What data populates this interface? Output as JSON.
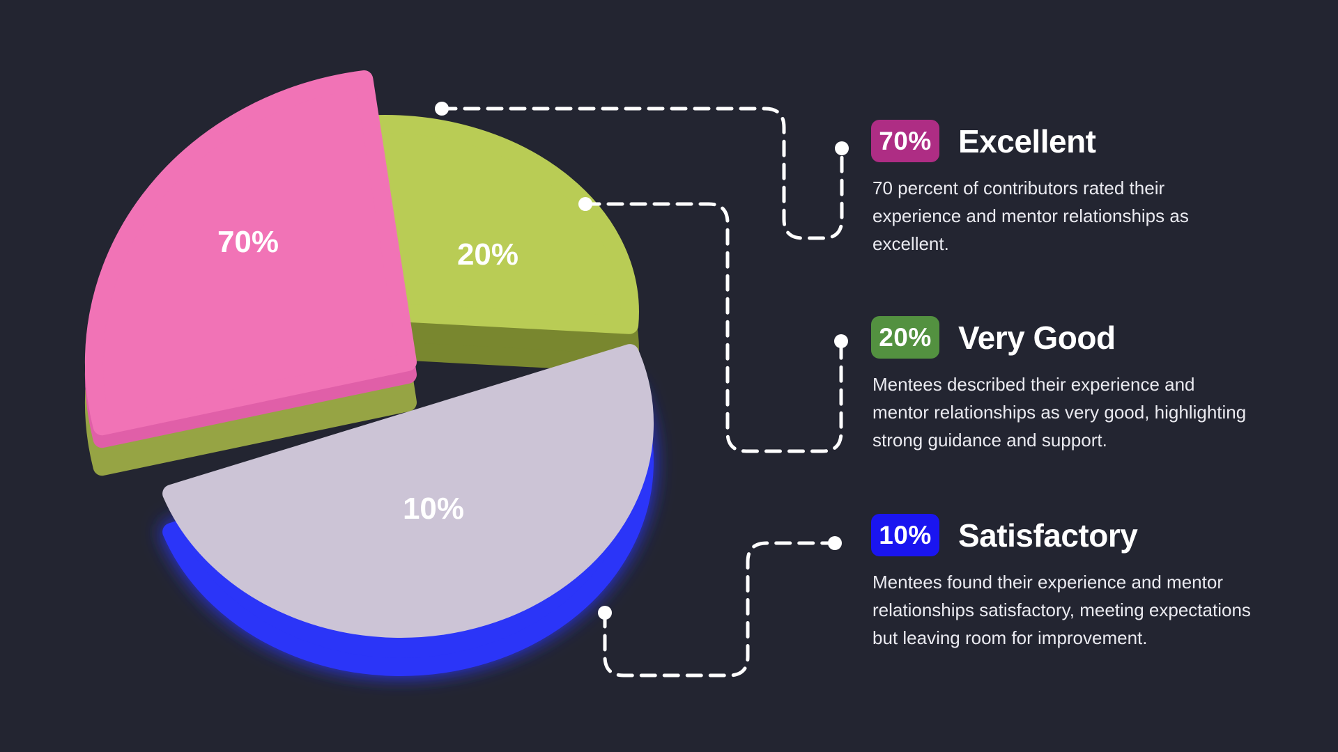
{
  "background_color": "#232531",
  "connector_color": "#FFFFFF",
  "chart_data": {
    "type": "pie",
    "style": "3d-exploded",
    "unit": "percent",
    "slices": [
      {
        "label": "Excellent",
        "value": 70,
        "display": "70%",
        "color_top": "#F173B6",
        "color_rim": "#E05FA8",
        "color_side": "#96A444"
      },
      {
        "label": "Very Good",
        "value": 20,
        "display": "20%",
        "color_top": "#B9CC55",
        "color_side": "#79872F"
      },
      {
        "label": "Satisfactory",
        "value": 10,
        "display": "10%",
        "color_top": "#CCC4D6",
        "color_side": "#2B35F8"
      }
    ],
    "legend_position": "right"
  },
  "legend": {
    "items": [
      {
        "badge": "70%",
        "badge_color": "#AE2D84",
        "title": "Excellent",
        "description": "70 percent of contributors rated their experience and mentor relationships as excellent."
      },
      {
        "badge": "20%",
        "badge_color": "#539140",
        "title": "Very Good",
        "description": "Mentees described their experience and mentor relationships as very good, highlighting strong guidance and support."
      },
      {
        "badge": "10%",
        "badge_color": "#1A15F0",
        "title": "Satisfactory",
        "description": "Mentees found their experience and mentor relationships satisfactory, meeting expectations but leaving room for improvement."
      }
    ]
  }
}
